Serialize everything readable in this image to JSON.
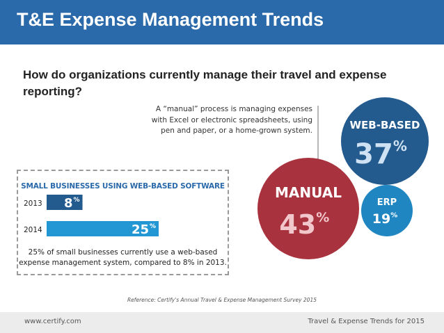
{
  "header": {
    "title": "T&E Expense Management Trends",
    "background": "#2b6aaa"
  },
  "question": "How do organizations currently manage their travel and expense reporting?",
  "annotation": {
    "line1": "A “manual” process is managing expenses",
    "line2": "with Excel or electronic spreadsheets, using",
    "line3": "pen and paper, or a home-grown system."
  },
  "colors": {
    "manual": "#a8323d",
    "web_based": "#245b8f",
    "erp": "#1f86c2",
    "bar_2013": "#245b8f",
    "bar_2014": "#2397d4"
  },
  "chart_data": [
    {
      "type": "bubble",
      "categories": [
        "MANUAL",
        "WEB-BASED",
        "ERP"
      ],
      "values": [
        43,
        37,
        19
      ],
      "unit": "%"
    },
    {
      "type": "bar",
      "orientation": "horizontal",
      "title": "SMALL BUSINESSES USING WEB-BASED SOFTWARE",
      "categories": [
        "2013",
        "2014"
      ],
      "values": [
        8,
        25
      ],
      "unit": "%",
      "xlim": [
        0,
        25
      ]
    }
  ],
  "inset": {
    "caption_line1": "25% of small businesses currently use a web-based",
    "caption_line2": "expense management system, compared to 8% in 2013."
  },
  "reference": "Reference: Certify's Annual Travel & Expense Management Survey 2015",
  "footer": {
    "left": "www.certify.com",
    "right": "Travel & Expense Trends for 2015"
  }
}
